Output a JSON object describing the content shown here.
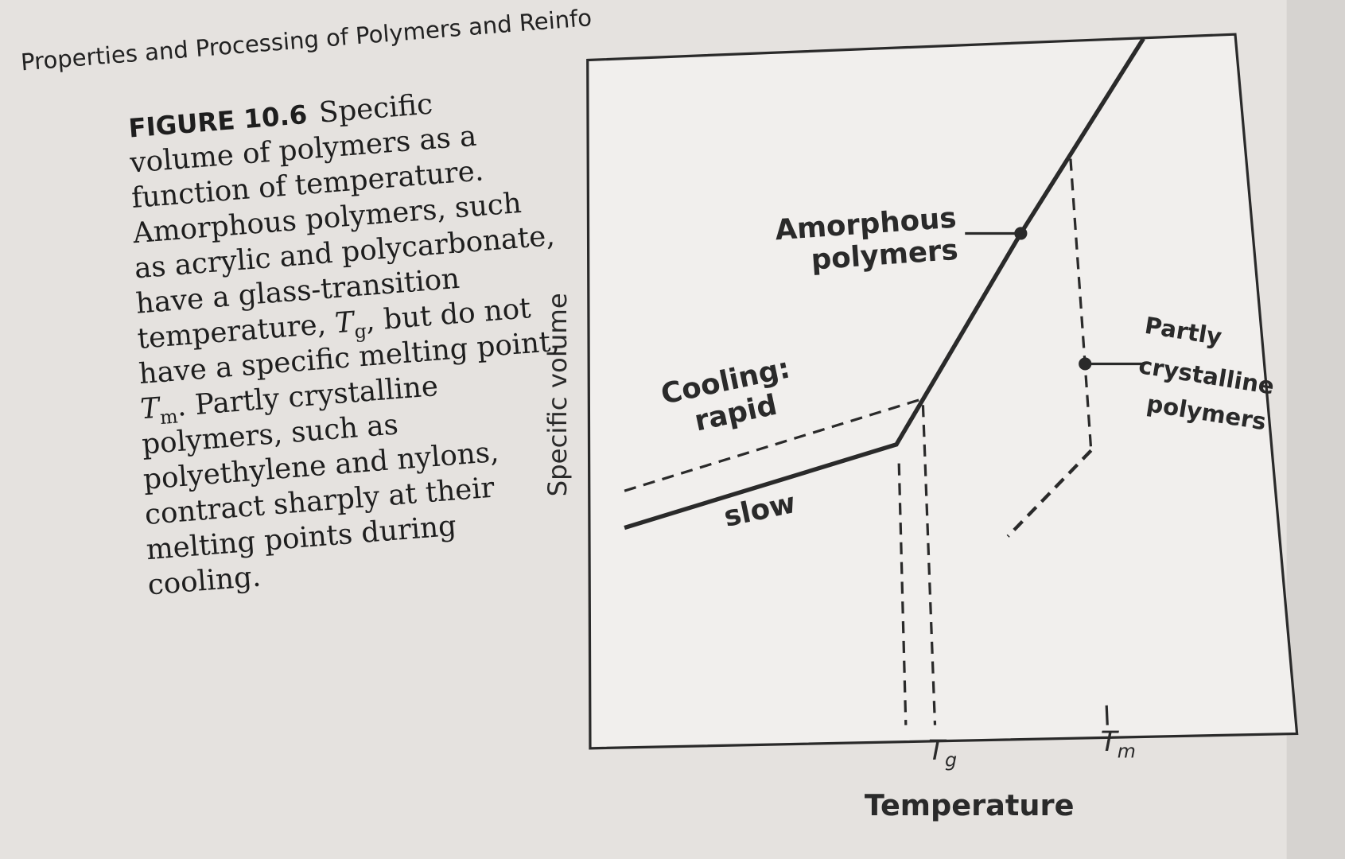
{
  "header": {
    "running_title": "Properties and Processing of Polymers and Reinfo"
  },
  "caption": {
    "label": "FIGURE 10.6",
    "lines": [
      "Specific",
      "volume of polymers as a",
      "function of temperature.",
      "Amorphous polymers, such",
      "as acrylic and polycarbonate,",
      "have a glass-transition",
      [
        "temperature, ",
        "T",
        "g",
        ", but do not"
      ],
      "have a specific melting point,",
      [
        "",
        "T",
        "m",
        ". Partly crystalline"
      ],
      "polymers, such as",
      "polyethylene and nylons,",
      "contract sharply at their",
      "melting points during",
      "cooling."
    ]
  },
  "figure": {
    "y_axis_label": "Specific volume",
    "x_axis_label": "Temperature",
    "tg": {
      "main": "T",
      "sub": "g"
    },
    "tm": {
      "main": "T",
      "sub": "m"
    },
    "amorphous": [
      "Amorphous",
      "polymers"
    ],
    "cooling": [
      "Cooling:",
      "rapid"
    ],
    "slow": "slow",
    "crystalline": [
      "Partly",
      "crystalline",
      "polymers"
    ]
  }
}
